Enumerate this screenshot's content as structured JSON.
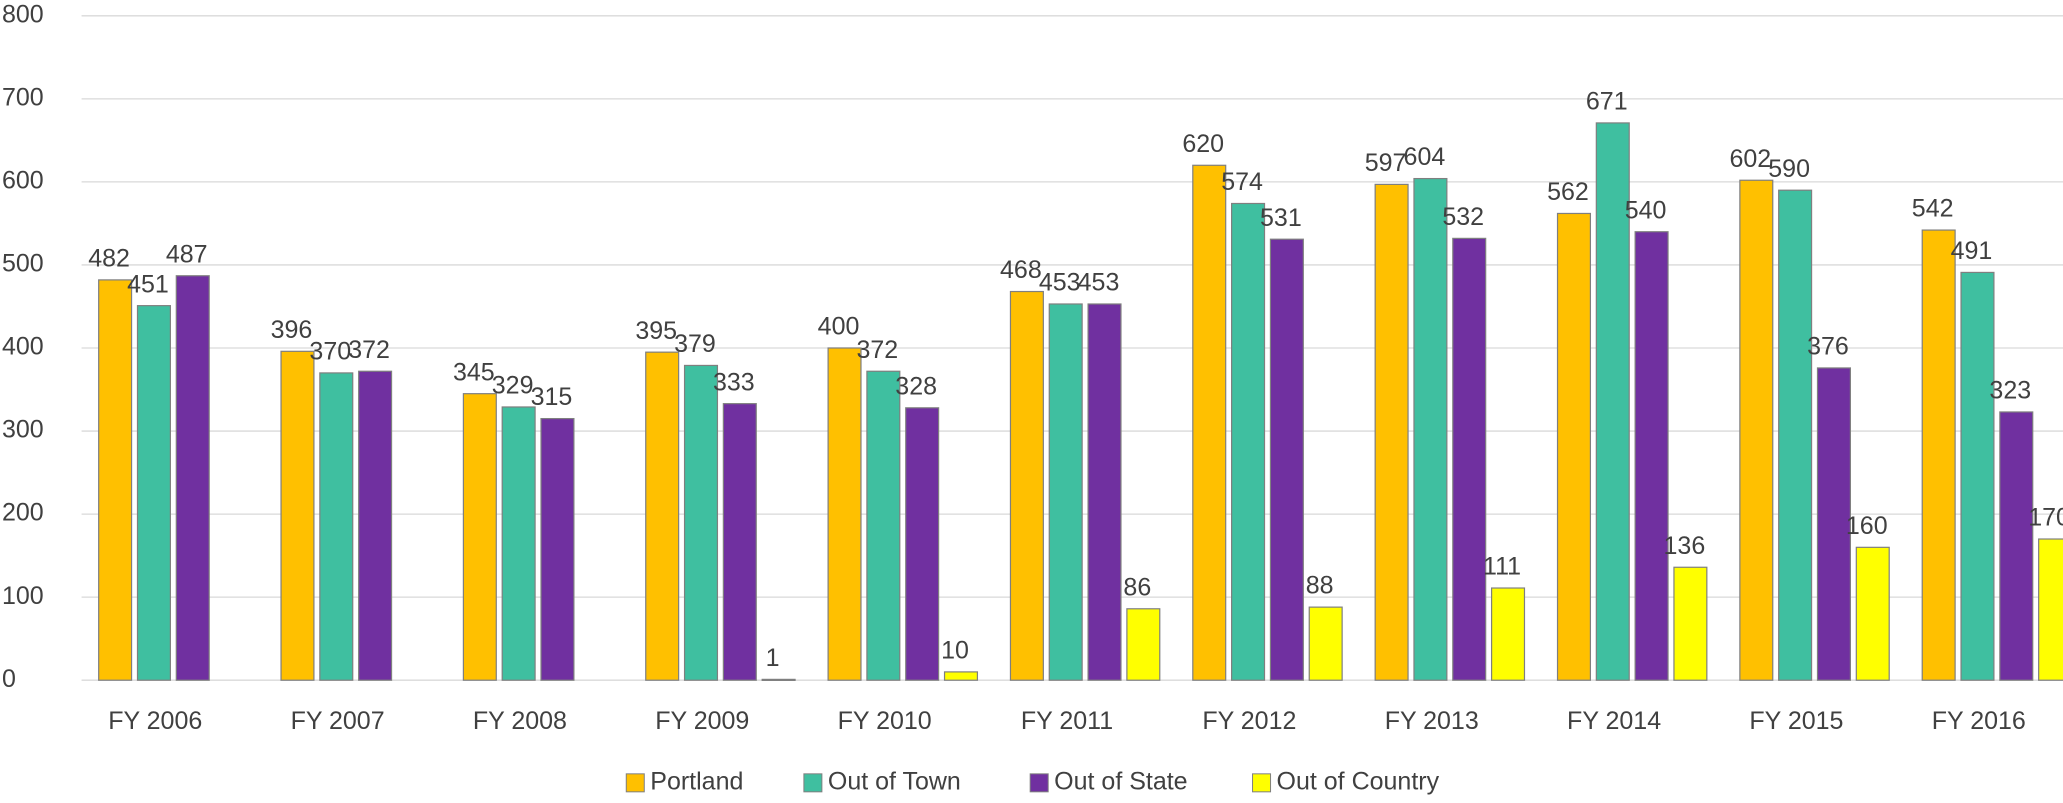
{
  "chart_data": {
    "type": "bar",
    "categories": [
      "FY 2006",
      "FY 2007",
      "FY 2008",
      "FY 2009",
      "FY 2010",
      "FY 2011",
      "FY 2012",
      "FY 2013",
      "FY 2014",
      "FY 2015",
      "FY 2016"
    ],
    "series": [
      {
        "name": "Portland",
        "color": "#FFC000",
        "values": [
          482,
          396,
          345,
          395,
          400,
          468,
          620,
          597,
          562,
          602,
          542
        ]
      },
      {
        "name": "Out of Town",
        "color": "#3FBFA0",
        "values": [
          451,
          370,
          329,
          379,
          372,
          453,
          574,
          604,
          671,
          590,
          491
        ]
      },
      {
        "name": "Out of State",
        "color": "#7030A0",
        "values": [
          487,
          372,
          315,
          333,
          328,
          453,
          531,
          532,
          540,
          376,
          323
        ]
      },
      {
        "name": "Out of Country",
        "color": "#FFFF00",
        "values": [
          null,
          null,
          null,
          1,
          10,
          86,
          88,
          111,
          136,
          160,
          170
        ]
      }
    ],
    "ylim": [
      0,
      800
    ],
    "yticks": [
      0,
      100,
      200,
      300,
      400,
      500,
      600,
      700,
      800
    ],
    "grid": true,
    "legend": "bottom"
  }
}
